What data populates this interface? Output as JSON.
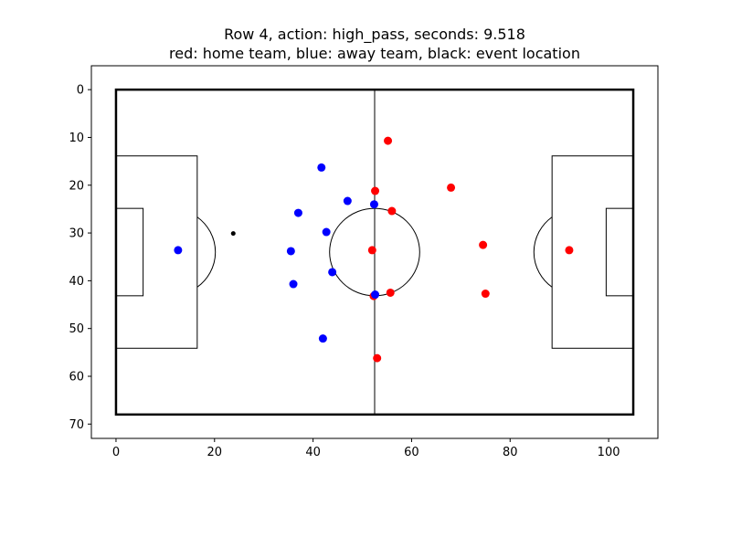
{
  "chart_data": {
    "type": "scatter",
    "title_line1": "Row 4, action: high_pass, seconds: 9.518",
    "title_line2": "red: home team, blue: away team, black: event location",
    "xlabel": "",
    "ylabel": "",
    "xlim": [
      -5,
      110
    ],
    "ylim": [
      73,
      -5
    ],
    "y_inverted": true,
    "grid": false,
    "x_ticks": [
      0,
      20,
      40,
      60,
      80,
      100
    ],
    "y_ticks": [
      0,
      10,
      20,
      30,
      40,
      50,
      60,
      70
    ],
    "pitch": {
      "length": 105,
      "width": 68
    },
    "colors": {
      "home": "#ff0000",
      "away": "#0000ff",
      "event": "#000000",
      "lines": "#000000"
    },
    "series": [
      {
        "team": "home",
        "color": "#ff0000",
        "points": [
          {
            "x": 55.2,
            "y": 10.7
          },
          {
            "x": 52.6,
            "y": 21.2
          },
          {
            "x": 68.0,
            "y": 20.5
          },
          {
            "x": 56.0,
            "y": 25.4
          },
          {
            "x": 74.5,
            "y": 32.5
          },
          {
            "x": 52.0,
            "y": 33.6
          },
          {
            "x": 92.0,
            "y": 33.6
          },
          {
            "x": 55.7,
            "y": 42.5
          },
          {
            "x": 52.3,
            "y": 43.2
          },
          {
            "x": 75.0,
            "y": 42.7
          },
          {
            "x": 53.0,
            "y": 56.2
          }
        ]
      },
      {
        "team": "away",
        "color": "#0000ff",
        "points": [
          {
            "x": 41.7,
            "y": 16.3
          },
          {
            "x": 47.0,
            "y": 23.3
          },
          {
            "x": 52.4,
            "y": 24.0
          },
          {
            "x": 37.0,
            "y": 25.8
          },
          {
            "x": 42.7,
            "y": 29.8
          },
          {
            "x": 12.6,
            "y": 33.6
          },
          {
            "x": 35.5,
            "y": 33.8
          },
          {
            "x": 43.9,
            "y": 38.2
          },
          {
            "x": 36.0,
            "y": 40.7
          },
          {
            "x": 52.6,
            "y": 42.9
          },
          {
            "x": 42.0,
            "y": 52.1
          }
        ]
      }
    ],
    "event": {
      "x": 23.8,
      "y": 30.1
    }
  }
}
